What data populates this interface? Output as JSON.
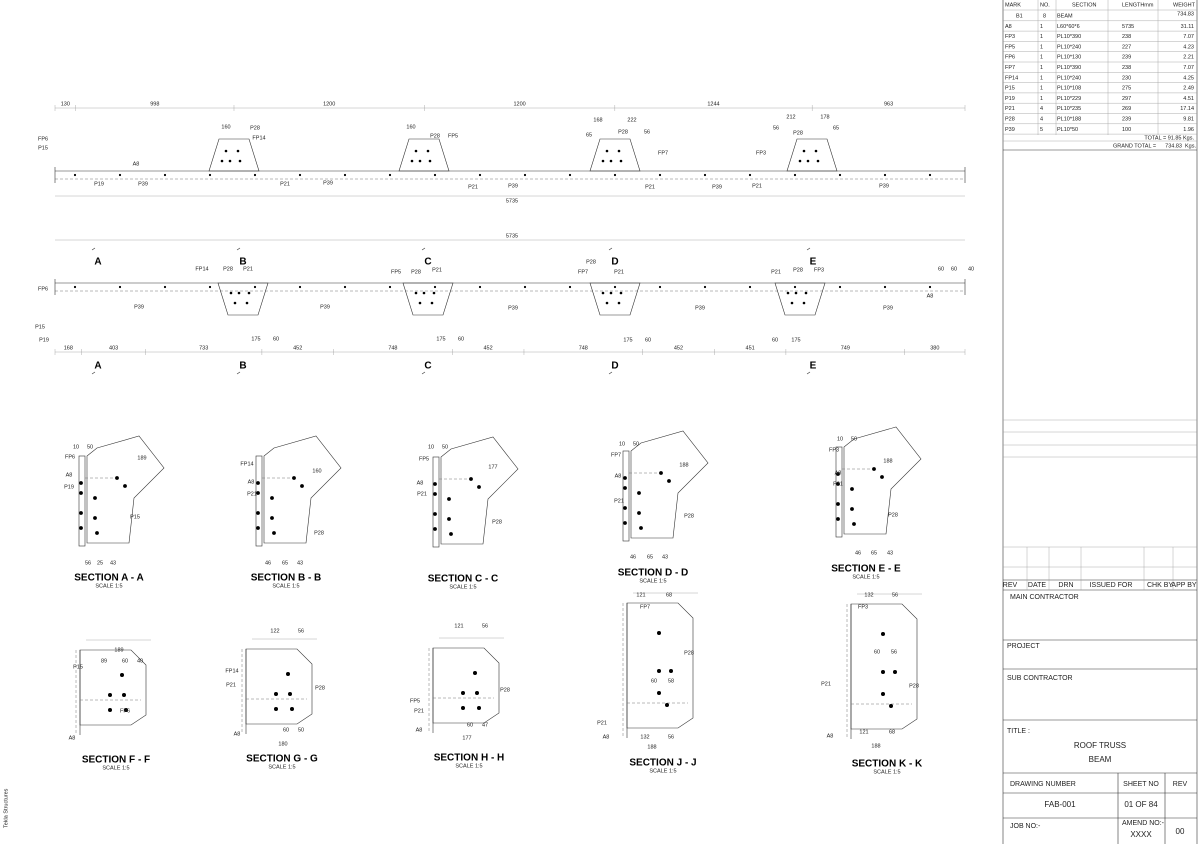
{
  "side_text": "Tekla Structures",
  "bom": {
    "headers": [
      "MARK",
      "NO.",
      "SECTION",
      "LENGTHmm",
      "WEIGHT"
    ],
    "rows": [
      {
        "mark": "B1",
        "no": "8",
        "section": "BEAM",
        "weight": "734.83"
      },
      {
        "mark": "A8",
        "no": "1",
        "section": "L60*60*6",
        "length": "5735",
        "weight": "31.11"
      },
      {
        "mark": "FP3",
        "no": "1",
        "section": "PL10*390",
        "length": "238",
        "weight": "7.07"
      },
      {
        "mark": "FP5",
        "no": "1",
        "section": "PL10*240",
        "length": "227",
        "weight": "4.23"
      },
      {
        "mark": "FP6",
        "no": "1",
        "section": "PL10*130",
        "length": "239",
        "weight": "2.21"
      },
      {
        "mark": "FP7",
        "no": "1",
        "section": "PL10*390",
        "length": "238",
        "weight": "7.07"
      },
      {
        "mark": "FP14",
        "no": "1",
        "section": "PL10*240",
        "length": "230",
        "weight": "4.25"
      },
      {
        "mark": "P15",
        "no": "1",
        "section": "PL10*108",
        "length": "275",
        "weight": "2.49"
      },
      {
        "mark": "P19",
        "no": "1",
        "section": "PL10*229",
        "length": "297",
        "weight": "4.51"
      },
      {
        "mark": "P21",
        "no": "4",
        "section": "PL10*235",
        "length": "269",
        "weight": "17.14"
      },
      {
        "mark": "P28",
        "no": "4",
        "section": "PL10*188",
        "length": "239",
        "weight": "9.81"
      },
      {
        "mark": "P39",
        "no": "5",
        "section": "PL10*50",
        "length": "100",
        "weight": "1.96"
      }
    ],
    "total": "TOTAL = 91.85  Kgs.",
    "grand_total_label": "GRAND TOTAL =",
    "grand_total": "734.83",
    "grand_total_unit": "Kgs."
  },
  "elevation1": {
    "dims": [
      130,
      998,
      1200,
      1200,
      1244,
      963
    ],
    "overall": 5735,
    "labels": [
      "FP6",
      "P15",
      "A8",
      "P19",
      "P39",
      "P21",
      "P39",
      "P21",
      "P39",
      "P21",
      "P39",
      "P21",
      "P39",
      "P28",
      "FP14",
      "160",
      "160",
      "P28",
      "FP5",
      "168",
      "222",
      "65",
      "P28",
      "56",
      "FP7",
      "212",
      "178",
      "56",
      "P28",
      "65",
      "FP3"
    ]
  },
  "elevation2": {
    "dims": [
      168,
      403,
      733,
      452,
      748,
      452,
      748,
      452,
      451,
      749,
      380
    ],
    "overall": 5735,
    "markers": [
      "A",
      "B",
      "C",
      "D",
      "E"
    ],
    "labels": [
      "FP6",
      "P15",
      "P19",
      "FP14",
      "P28",
      "P21",
      "P39",
      "P39",
      "P39",
      "P39",
      "P39",
      "FP5",
      "P28",
      "P21",
      "FP7",
      "P28",
      "P21",
      "P21",
      "P28",
      "FP3",
      "A8",
      "60",
      "60",
      "40",
      "175",
      "60",
      "175",
      "60",
      "175",
      "60",
      "60",
      "175"
    ]
  },
  "sections": [
    {
      "title": "SECTION A - A",
      "scale": "SCALE  1:5",
      "labels": [
        "10",
        "50",
        "FP6",
        "A8",
        "P19",
        "P15",
        "56",
        "25",
        "43",
        "189"
      ]
    },
    {
      "title": "SECTION B - B",
      "scale": "SCALE 1:5",
      "labels": [
        "FP14",
        "A8",
        "P21",
        "P28",
        "46",
        "65",
        "43",
        "160"
      ]
    },
    {
      "title": "SECTION C - C",
      "scale": "SCALE 1:5",
      "labels": [
        "10",
        "50",
        "FP5",
        "A8",
        "P21",
        "P28",
        "177"
      ]
    },
    {
      "title": "SECTION D - D",
      "scale": "SCALE 1:5",
      "labels": [
        "10",
        "50",
        "FP7",
        "A8",
        "P21",
        "P28",
        "46",
        "65",
        "43",
        "188"
      ]
    },
    {
      "title": "SECTION E - E",
      "scale": "SCALE 1:5",
      "labels": [
        "10",
        "50",
        "FP3",
        "A8",
        "P21",
        "P28",
        "46",
        "65",
        "43",
        "188"
      ]
    },
    {
      "title": "SECTION F - F",
      "scale": "SCALE 1:5",
      "labels": [
        "189",
        "89",
        "60",
        "40",
        "P15",
        "FP6",
        "A8"
      ]
    },
    {
      "title": "SECTION G - G",
      "scale": "SCALE 1:5",
      "labels": [
        "122",
        "56",
        "FP14",
        "P21",
        "P28",
        "A8",
        "60",
        "50",
        "180"
      ]
    },
    {
      "title": "SECTION H - H",
      "scale": "SCALE 1:5",
      "labels": [
        "121",
        "56",
        "FP5",
        "P21",
        "P28",
        "A8",
        "60",
        "47",
        "177"
      ]
    },
    {
      "title": "SECTION J - J",
      "scale": "SCALE 1:5",
      "labels": [
        "121",
        "68",
        "FP7",
        "P28",
        "60",
        "58",
        "P21",
        "A8",
        "132",
        "56",
        "188"
      ]
    },
    {
      "title": "SECTION K - K",
      "scale": "SCALE 1:5",
      "labels": [
        "132",
        "56",
        "FP3",
        "60",
        "56",
        "P28",
        "P21",
        "A8",
        "121",
        "68",
        "188"
      ]
    }
  ],
  "title_block": {
    "revision_headers": [
      "REV",
      "DATE",
      "DRN",
      "ISSUED FOR",
      "CHK BY",
      "APP BY"
    ],
    "main_contractor": "MAIN CONTRACTOR",
    "project": "PROJECT",
    "sub_contractor": "SUB CONTRACTOR",
    "title_label": "TITLE :",
    "title_lines": [
      "ROOF TRUSS",
      "BEAM"
    ],
    "drawing_number_label": "DRAWING NUMBER",
    "sheet_no_label": "SHEET NO",
    "rev_label": "REV",
    "drawing_number": "FAB-001",
    "sheet_no": "01 OF 84",
    "job_no_label": "JOB NO:-",
    "amend_no_label": "AMEND NO:-",
    "amend_no": "XXXX",
    "rev": "00"
  }
}
